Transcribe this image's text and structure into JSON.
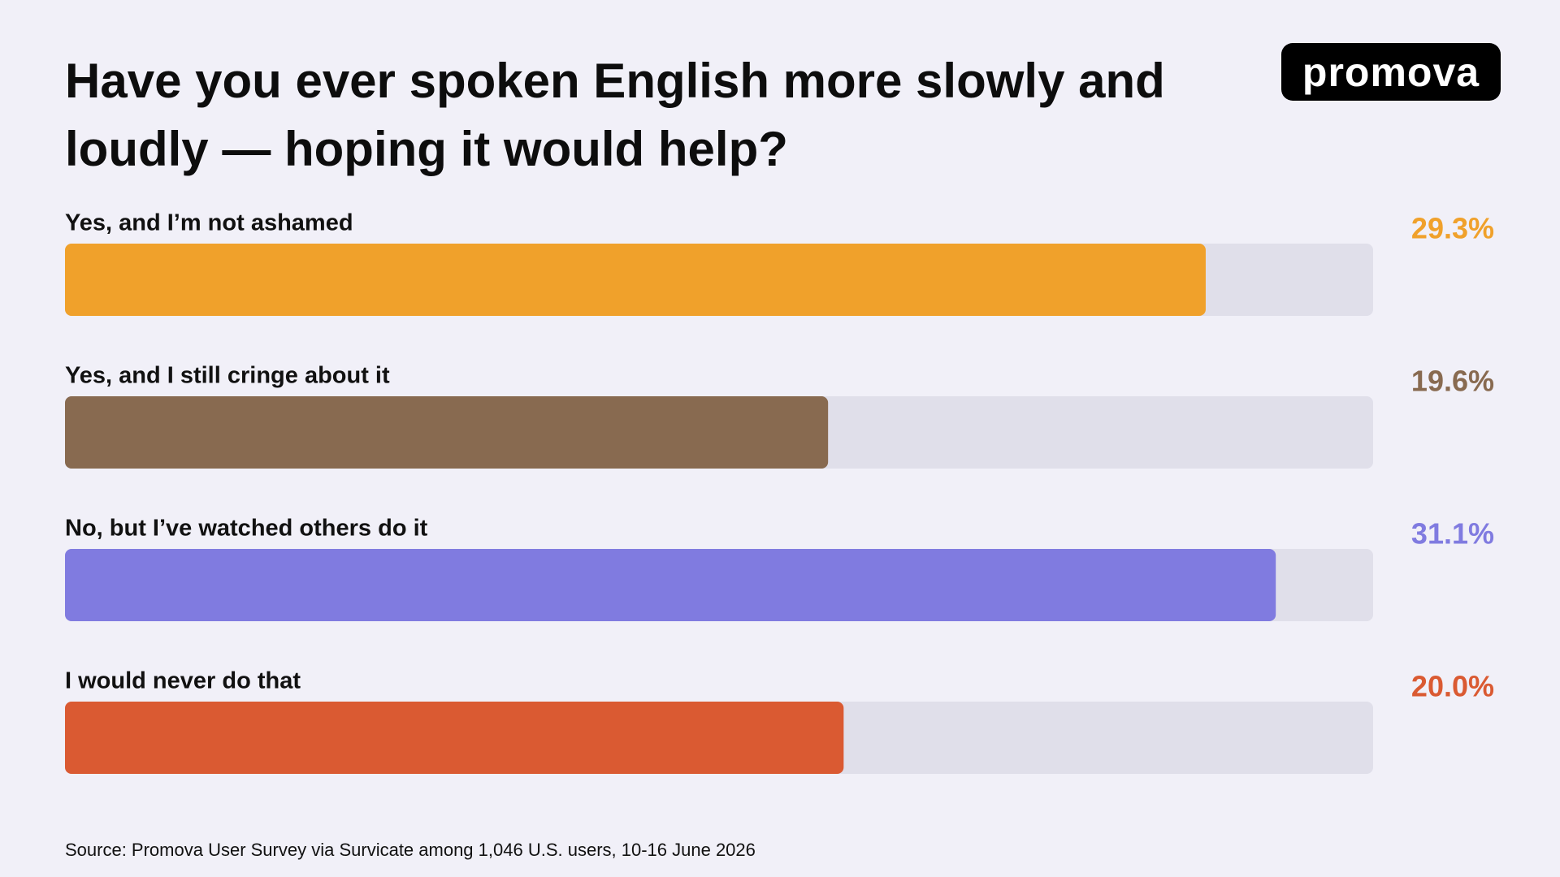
{
  "chart_data": {
    "type": "bar",
    "title": "Have you ever spoken English more slowly and loudly — hoping it would help?",
    "logo": "promova",
    "categories": [
      "Yes, and I’m not ashamed",
      "Yes, and I still cringe about it",
      "No, but I’ve watched others do it",
      "I would never do that"
    ],
    "values": [
      29.3,
      19.6,
      31.1,
      20.0
    ],
    "value_labels": [
      "29.3%",
      "19.6%",
      "31.1%",
      "20.0%"
    ],
    "colors": [
      "#f0a12b",
      "#886a50",
      "#807be0",
      "#da5a32"
    ],
    "track_color": "#e0dfea",
    "xlim": [
      0,
      33.6
    ],
    "source": "Source: Promova User Survey via Survicate among 1,046 U.S. users, 10-16 June 2026"
  }
}
